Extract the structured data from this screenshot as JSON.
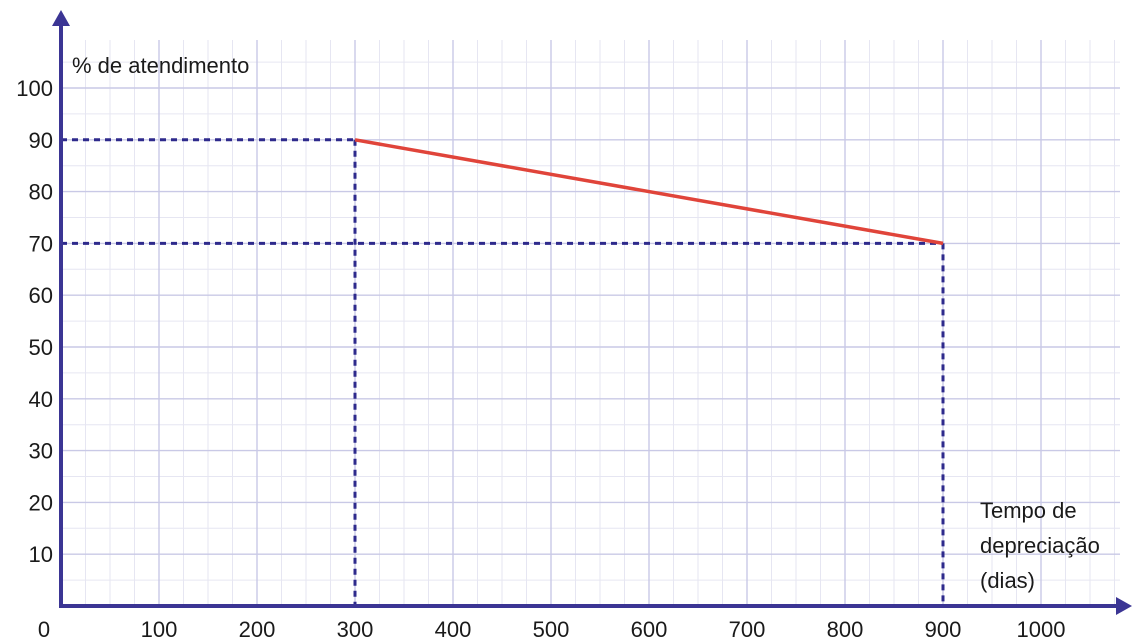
{
  "chart_data": {
    "type": "line",
    "ylabel": "% de atendimento",
    "xlabel_lines": [
      "Tempo de",
      "depreciação",
      "(dias)"
    ],
    "x_origin_label": "0",
    "xticks": [
      100,
      200,
      300,
      400,
      500,
      600,
      700,
      800,
      900,
      1000
    ],
    "yticks": [
      10,
      20,
      30,
      40,
      50,
      60,
      70,
      80,
      90,
      100
    ],
    "xlim": [
      0,
      1100
    ],
    "ylim": [
      0,
      100
    ],
    "grid": true,
    "minor_grid_step": {
      "x": 25,
      "y": 5
    },
    "series": [
      {
        "points": [
          {
            "x": 300,
            "y": 90
          },
          {
            "x": 900,
            "y": 70
          }
        ]
      }
    ],
    "reference_lines": [
      {
        "from": {
          "x": 0,
          "y": 90
        },
        "to": {
          "x": 300,
          "y": 90
        }
      },
      {
        "from": {
          "x": 300,
          "y": 90
        },
        "to": {
          "x": 300,
          "y": 0
        }
      },
      {
        "from": {
          "x": 0,
          "y": 70
        },
        "to": {
          "x": 900,
          "y": 70
        }
      },
      {
        "from": {
          "x": 900,
          "y": 70
        },
        "to": {
          "x": 900,
          "y": 0
        }
      }
    ],
    "colors": {
      "axis": "#3b3594",
      "series": "#e0443a",
      "reference": "#2e2a8c",
      "grid_major": "#c9c9e6",
      "grid_minor": "#e6e6f2"
    }
  }
}
